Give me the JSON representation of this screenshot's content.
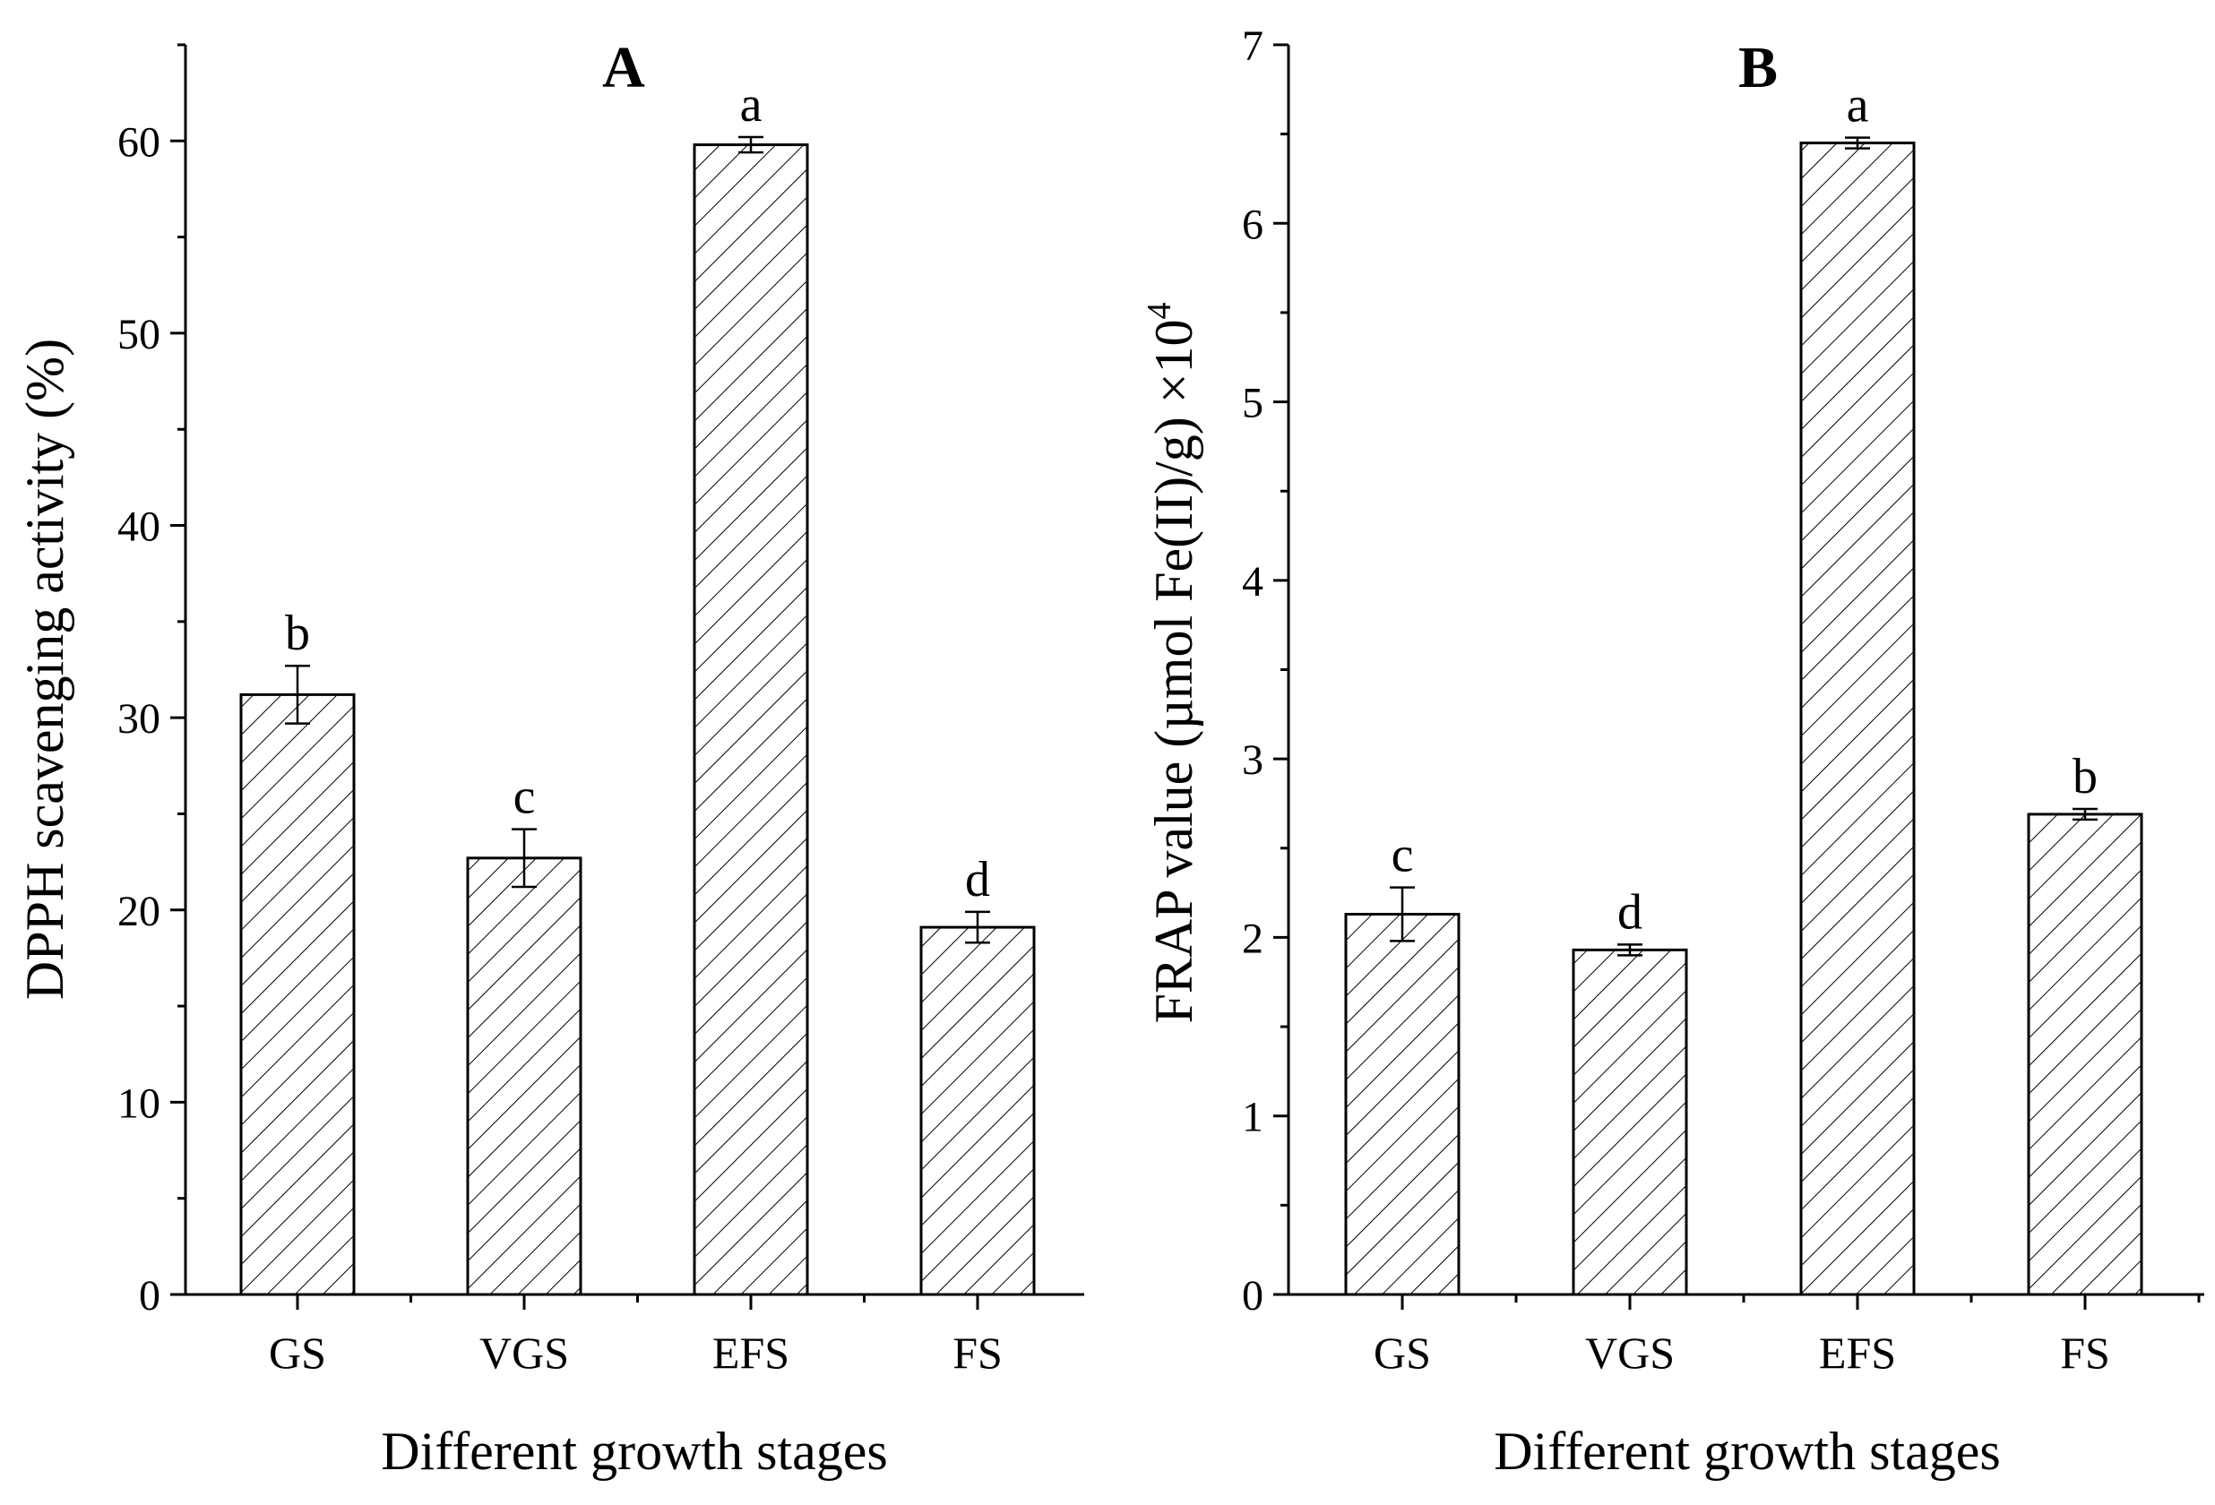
{
  "chart_data": [
    {
      "type": "bar",
      "panel_label": "A",
      "categories": [
        "GS",
        "VGS",
        "EFS",
        "FS"
      ],
      "values": [
        31.2,
        22.7,
        59.8,
        19.1
      ],
      "errors": [
        1.5,
        1.5,
        0.4,
        0.8
      ],
      "significance_letters": [
        "b",
        "c",
        "a",
        "d"
      ],
      "xlabel": "Different growth stages",
      "ylabel": "DPPH scavenging activity (%)",
      "ylim": [
        0,
        65
      ],
      "yticks": [
        0,
        10,
        20,
        30,
        40,
        50,
        60
      ],
      "ytick_labels": [
        "0",
        "10",
        "20",
        "30",
        "40",
        "50",
        "60"
      ],
      "minor_step": 5,
      "pattern": "diagonal-hatch"
    },
    {
      "type": "bar",
      "panel_label": "B",
      "categories": [
        "GS",
        "VGS",
        "EFS",
        "FS"
      ],
      "values": [
        2.13,
        1.93,
        6.45,
        2.69
      ],
      "errors": [
        0.15,
        0.03,
        0.03,
        0.03
      ],
      "significance_letters": [
        "c",
        "d",
        "a",
        "b"
      ],
      "xlabel": "Different growth stages",
      "ylabel": "FRAP value (µmol Fe(II)/g) ×10",
      "ylabel_superscript": "4",
      "ylim": [
        0,
        7
      ],
      "yticks": [
        0,
        1,
        2,
        3,
        4,
        5,
        6,
        7
      ],
      "ytick_labels": [
        "0",
        "1",
        "2",
        "3",
        "4",
        "5",
        "6",
        "7"
      ],
      "minor_step": 0.5,
      "pattern": "diagonal-hatch"
    }
  ]
}
